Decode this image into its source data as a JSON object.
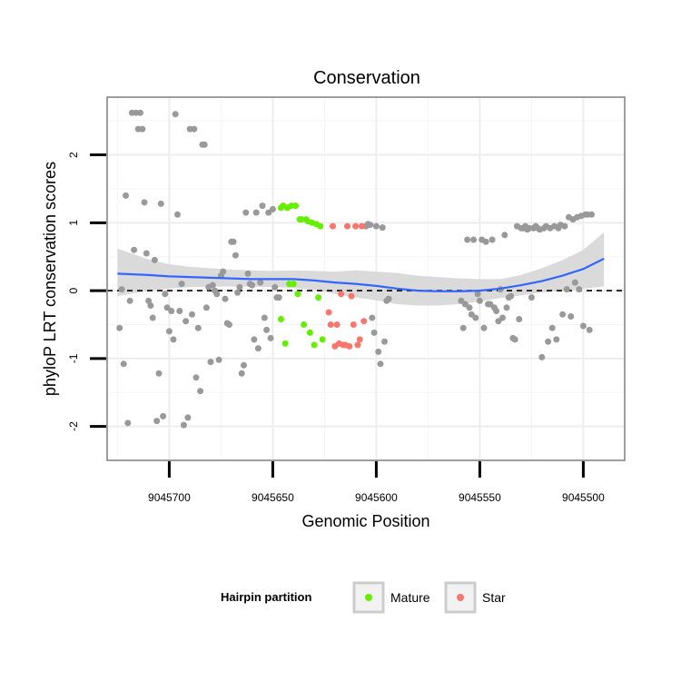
{
  "chart_data": {
    "type": "scatter",
    "title": "Conservation",
    "xlabel": "Genomic Position",
    "ylabel": "phyloP LRT conservation scores",
    "x_reversed": true,
    "xlim": [
      9045730,
      9045480
    ],
    "ylim": [
      -2.5,
      2.85
    ],
    "x_ticks": [
      9045700,
      9045650,
      9045600,
      9045550,
      9045500
    ],
    "x_tick_labels": [
      "9045700",
      "9045650",
      "9045600",
      "9045550",
      "9045500"
    ],
    "y_ticks": [
      -2,
      -1,
      0,
      1,
      2
    ],
    "y_tick_labels": [
      "-2",
      "-1",
      "0",
      "1",
      "2"
    ],
    "reference_line": {
      "y": 0,
      "style": "dashed"
    },
    "grid": true,
    "legend": {
      "title": "Hairpin partition",
      "position": "bottom",
      "entries": [
        {
          "label": "Mature",
          "color": "#66ee00"
        },
        {
          "label": "Star",
          "color": "#f8766d"
        }
      ]
    },
    "other_color": "#999999",
    "smooth_color": "#3366ff",
    "band_color": "#d6d6d6",
    "series": [
      {
        "name": "Other",
        "points": [
          [
            9045724,
            -0.55
          ],
          [
            9045723,
            0.02
          ],
          [
            9045722,
            -1.08
          ],
          [
            9045721,
            1.4
          ],
          [
            9045720,
            -1.95
          ],
          [
            9045719,
            -0.15
          ],
          [
            9045718,
            2.62
          ],
          [
            9045717,
            0.6
          ],
          [
            9045716,
            2.62
          ],
          [
            9045715,
            2.38
          ],
          [
            9045714,
            2.62
          ],
          [
            9045713,
            2.38
          ],
          [
            9045712,
            1.3
          ],
          [
            9045711,
            0.55
          ],
          [
            9045710,
            -0.15
          ],
          [
            9045709,
            -0.22
          ],
          [
            9045708,
            -0.4
          ],
          [
            9045707,
            0.45
          ],
          [
            9045706,
            -1.92
          ],
          [
            9045705,
            -1.22
          ],
          [
            9045704,
            1.28
          ],
          [
            9045703,
            -1.85
          ],
          [
            9045702,
            -0.05
          ],
          [
            9045701,
            -0.25
          ],
          [
            9045700,
            -0.6
          ],
          [
            9045699,
            -0.3
          ],
          [
            9045698,
            -0.72
          ],
          [
            9045697,
            2.6
          ],
          [
            9045696,
            1.12
          ],
          [
            9045695,
            -0.3
          ],
          [
            9045694,
            0.1
          ],
          [
            9045693,
            -1.98
          ],
          [
            9045692,
            -0.45
          ],
          [
            9045691,
            -1.87
          ],
          [
            9045690,
            2.38
          ],
          [
            9045689,
            -0.35
          ],
          [
            9045688,
            2.38
          ],
          [
            9045687,
            -1.28
          ],
          [
            9045686,
            -0.55
          ],
          [
            9045685,
            -1.48
          ],
          [
            9045684,
            2.15
          ],
          [
            9045683,
            2.15
          ],
          [
            9045682,
            -0.25
          ],
          [
            9045681,
            0.05
          ],
          [
            9045680,
            -1.05
          ],
          [
            9045679,
            0.08
          ],
          [
            9045678,
            0.0
          ],
          [
            9045677,
            -0.05
          ],
          [
            9045676,
            -1.02
          ],
          [
            9045675,
            0.22
          ],
          [
            9045674,
            0.28
          ],
          [
            9045673,
            -0.12
          ],
          [
            9045672,
            -0.48
          ],
          [
            9045671,
            -0.5
          ],
          [
            9045670,
            0.72
          ],
          [
            9045669,
            0.72
          ],
          [
            9045668,
            0.52
          ],
          [
            9045667,
            -0.03
          ],
          [
            9045666,
            0.05
          ],
          [
            9045665,
            -1.22
          ],
          [
            9045664,
            -1.1
          ],
          [
            9045663,
            1.15
          ],
          [
            9045662,
            0.25
          ],
          [
            9045661,
            0.1
          ],
          [
            9045660,
            0.08
          ],
          [
            9045659,
            -0.72
          ],
          [
            9045658,
            1.15
          ],
          [
            9045657,
            -0.85
          ],
          [
            9045656,
            0.12
          ],
          [
            9045655,
            1.25
          ],
          [
            9045654,
            -0.4
          ],
          [
            9045653,
            -0.58
          ],
          [
            9045652,
            1.15
          ],
          [
            9045651,
            -0.7
          ],
          [
            9045650,
            1.2
          ],
          [
            9045649,
            0.05
          ],
          [
            9045648,
            -0.1
          ],
          [
            9045647,
            -0.1
          ],
          [
            9045605,
            0.95
          ],
          [
            9045604,
            0.98
          ],
          [
            9045603,
            0.97
          ],
          [
            9045602,
            -0.4
          ],
          [
            9045601,
            -0.62
          ],
          [
            9045600,
            0.95
          ],
          [
            9045599,
            -0.9
          ],
          [
            9045598,
            -1.08
          ],
          [
            9045597,
            0.93
          ],
          [
            9045596,
            -0.75
          ],
          [
            9045595,
            -0.15
          ],
          [
            9045594,
            -0.12
          ],
          [
            9045559,
            -0.15
          ],
          [
            9045558,
            -0.55
          ],
          [
            9045557,
            -0.2
          ],
          [
            9045556,
            0.75
          ],
          [
            9045555,
            -0.25
          ],
          [
            9045554,
            -0.35
          ],
          [
            9045553,
            0.75
          ],
          [
            9045552,
            -0.4
          ],
          [
            9045551,
            -0.05
          ],
          [
            9045550,
            -0.15
          ],
          [
            9045549,
            0.75
          ],
          [
            9045548,
            -0.55
          ],
          [
            9045547,
            0.72
          ],
          [
            9045546,
            -0.2
          ],
          [
            9045545,
            -0.2
          ],
          [
            9045544,
            0.75
          ],
          [
            9045543,
            -0.25
          ],
          [
            9045542,
            -0.3
          ],
          [
            9045541,
            -0.45
          ],
          [
            9045540,
            0.02
          ],
          [
            9045539,
            -0.4
          ],
          [
            9045538,
            0.82
          ],
          [
            9045537,
            -0.25
          ],
          [
            9045536,
            -0.1
          ],
          [
            9045535,
            -0.08
          ],
          [
            9045534,
            -0.7
          ],
          [
            9045533,
            -0.72
          ],
          [
            9045532,
            0.95
          ],
          [
            9045531,
            -0.42
          ],
          [
            9045530,
            0.92
          ],
          [
            9045529,
            0.92
          ],
          [
            9045528,
            0.95
          ],
          [
            9045527,
            0.9
          ],
          [
            9045526,
            0.92
          ],
          [
            9045525,
            -0.1
          ],
          [
            9045524,
            0.92
          ],
          [
            9045523,
            0.95
          ],
          [
            9045522,
            0.92
          ],
          [
            9045521,
            0.9
          ],
          [
            9045520,
            -0.98
          ],
          [
            9045519,
            0.92
          ],
          [
            9045518,
            0.95
          ],
          [
            9045517,
            -0.75
          ],
          [
            9045516,
            0.92
          ],
          [
            9045515,
            -0.55
          ],
          [
            9045514,
            0.95
          ],
          [
            9045513,
            -0.72
          ],
          [
            9045512,
            0.92
          ],
          [
            9045511,
            0.97
          ],
          [
            9045510,
            -0.35
          ],
          [
            9045509,
            0.95
          ],
          [
            9045508,
            0.02
          ],
          [
            9045507,
            1.08
          ],
          [
            9045506,
            -0.38
          ],
          [
            9045505,
            1.05
          ],
          [
            9045504,
            0.12
          ],
          [
            9045503,
            1.08
          ],
          [
            9045502,
            0.02
          ],
          [
            9045501,
            1.1
          ],
          [
            9045500,
            -0.52
          ],
          [
            9045499,
            1.12
          ],
          [
            9045498,
            1.12
          ],
          [
            9045497,
            -0.58
          ],
          [
            9045496,
            1.12
          ]
        ]
      },
      {
        "name": "Mature",
        "points": [
          [
            9045646,
            -0.42
          ],
          [
            9045646,
            1.22
          ],
          [
            9045645,
            1.25
          ],
          [
            9045644,
            -0.78
          ],
          [
            9045643,
            1.22
          ],
          [
            9045642,
            0.1
          ],
          [
            9045641,
            1.25
          ],
          [
            9045640,
            0.1
          ],
          [
            9045639,
            1.25
          ],
          [
            9045638,
            -0.05
          ],
          [
            9045637,
            1.05
          ],
          [
            9045636,
            1.05
          ],
          [
            9045635,
            -0.5
          ],
          [
            9045634,
            1.05
          ],
          [
            9045633,
            1.02
          ],
          [
            9045632,
            -0.62
          ],
          [
            9045631,
            1.0
          ],
          [
            9045630,
            -0.8
          ],
          [
            9045629,
            0.98
          ],
          [
            9045628,
            -0.1
          ],
          [
            9045627,
            0.95
          ],
          [
            9045626,
            -0.72
          ]
        ]
      },
      {
        "name": "Star",
        "points": [
          [
            9045623,
            -0.32
          ],
          [
            9045622,
            -0.5
          ],
          [
            9045621,
            0.95
          ],
          [
            9045620,
            -0.82
          ],
          [
            9045619,
            -0.5
          ],
          [
            9045618,
            -0.78
          ],
          [
            9045617,
            -0.05
          ],
          [
            9045616,
            -0.8
          ],
          [
            9045615,
            -0.8
          ],
          [
            9045614,
            0.95
          ],
          [
            9045613,
            -0.82
          ],
          [
            9045612,
            -0.08
          ],
          [
            9045611,
            -0.5
          ],
          [
            9045610,
            0.95
          ],
          [
            9045609,
            -0.8
          ],
          [
            9045608,
            -0.72
          ],
          [
            9045607,
            0.95
          ],
          [
            9045606,
            -0.45
          ]
        ]
      }
    ],
    "smooth_line": {
      "x": [
        9045725,
        9045710,
        9045700,
        9045690,
        9045680,
        9045670,
        9045660,
        9045650,
        9045640,
        9045630,
        9045620,
        9045610,
        9045600,
        9045590,
        9045580,
        9045570,
        9045560,
        9045550,
        9045540,
        9045530,
        9045520,
        9045510,
        9045500,
        9045490
      ],
      "y": [
        0.25,
        0.23,
        0.21,
        0.2,
        0.19,
        0.18,
        0.17,
        0.17,
        0.17,
        0.15,
        0.12,
        0.1,
        0.07,
        0.03,
        0.0,
        -0.01,
        -0.01,
        0.0,
        0.03,
        0.08,
        0.14,
        0.22,
        0.32,
        0.47
      ],
      "band_lower": [
        -0.08,
        0.0,
        0.03,
        0.05,
        0.06,
        0.06,
        0.06,
        0.05,
        0.04,
        0.01,
        -0.05,
        -0.1,
        -0.14,
        -0.2,
        -0.22,
        -0.22,
        -0.2,
        -0.16,
        -0.11,
        -0.07,
        -0.03,
        0.0,
        0.03,
        0.06
      ],
      "band_upper": [
        0.62,
        0.46,
        0.39,
        0.35,
        0.33,
        0.31,
        0.3,
        0.29,
        0.3,
        0.29,
        0.28,
        0.3,
        0.28,
        0.26,
        0.22,
        0.2,
        0.18,
        0.17,
        0.17,
        0.23,
        0.33,
        0.45,
        0.6,
        0.86
      ]
    }
  }
}
